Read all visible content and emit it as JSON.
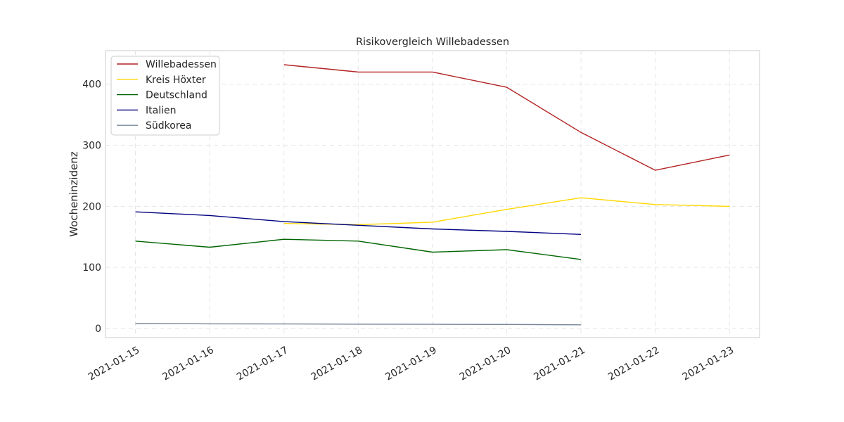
{
  "chart_data": {
    "type": "line",
    "title": "Risikovergleich Willebadessen",
    "xlabel": "",
    "ylabel": "Wocheninzidenz",
    "x": [
      "2021-01-15",
      "2021-01-16",
      "2021-01-17",
      "2021-01-18",
      "2021-01-19",
      "2021-01-20",
      "2021-01-21",
      "2021-01-22",
      "2021-01-23"
    ],
    "ylim": [
      -15,
      455
    ],
    "yticks": [
      0,
      100,
      200,
      300,
      400
    ],
    "grid": true,
    "legend_position": "top-left",
    "series": [
      {
        "name": "Willebadessen",
        "color": "#b22222",
        "values": [
          null,
          null,
          432,
          420,
          420,
          395,
          321,
          259,
          284
        ]
      },
      {
        "name": "Kreis Höxter",
        "color": "#ffd700",
        "values": [
          null,
          null,
          172,
          170,
          174,
          195,
          214,
          203,
          200
        ]
      },
      {
        "name": "Deutschland",
        "color": "#006400",
        "values": [
          143,
          133,
          146,
          143,
          125,
          129,
          113,
          null,
          null
        ]
      },
      {
        "name": "Italien",
        "color": "#000080",
        "values": [
          191,
          185,
          175,
          169,
          163,
          159,
          154,
          null,
          null
        ]
      },
      {
        "name": "Südkorea",
        "color": "#778899",
        "values": [
          8,
          7.6,
          7.3,
          7,
          6.8,
          6.5,
          6,
          null,
          null
        ]
      }
    ]
  }
}
